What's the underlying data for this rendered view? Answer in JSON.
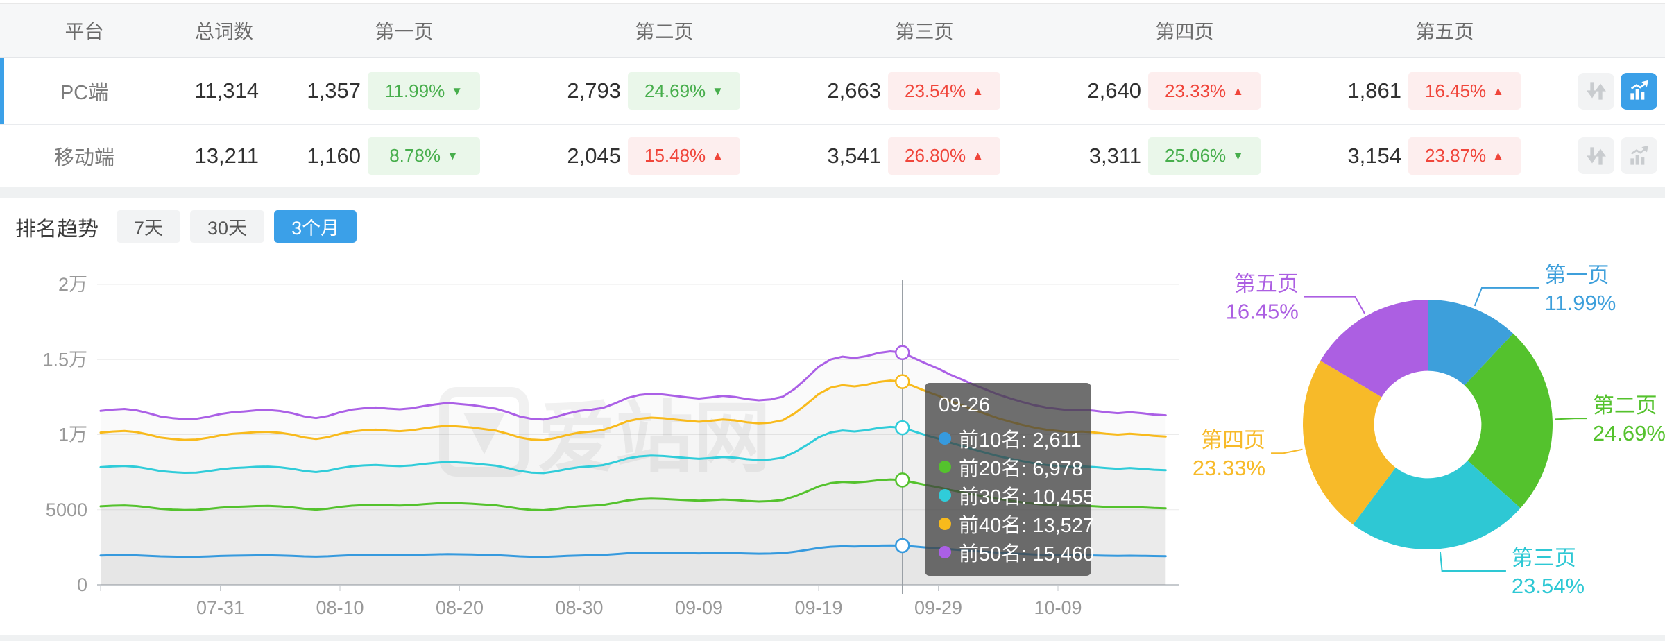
{
  "table": {
    "headers": {
      "platform": "平台",
      "total": "总词数",
      "pages": [
        "第一页",
        "第二页",
        "第三页",
        "第四页",
        "第五页"
      ]
    },
    "rows": [
      {
        "platform": "PC端",
        "total": "11,314",
        "active": true,
        "chart_button_active": true,
        "pages": [
          {
            "count": "1,357",
            "pct": "11.99%",
            "dir": "down",
            "tone": "green"
          },
          {
            "count": "2,793",
            "pct": "24.69%",
            "dir": "down",
            "tone": "green"
          },
          {
            "count": "2,663",
            "pct": "23.54%",
            "dir": "up",
            "tone": "red"
          },
          {
            "count": "2,640",
            "pct": "23.33%",
            "dir": "up",
            "tone": "red"
          },
          {
            "count": "1,861",
            "pct": "16.45%",
            "dir": "up",
            "tone": "red"
          }
        ]
      },
      {
        "platform": "移动端",
        "total": "13,211",
        "active": false,
        "chart_button_active": false,
        "pages": [
          {
            "count": "1,160",
            "pct": "8.78%",
            "dir": "down",
            "tone": "green"
          },
          {
            "count": "2,045",
            "pct": "15.48%",
            "dir": "up",
            "tone": "red"
          },
          {
            "count": "3,541",
            "pct": "26.80%",
            "dir": "up",
            "tone": "red"
          },
          {
            "count": "3,311",
            "pct": "25.06%",
            "dir": "down",
            "tone": "green"
          },
          {
            "count": "3,154",
            "pct": "23.87%",
            "dir": "up",
            "tone": "red"
          }
        ]
      }
    ]
  },
  "trend": {
    "title": "排名趋势",
    "tabs": [
      {
        "label": "7天",
        "active": false
      },
      {
        "label": "30天",
        "active": false
      },
      {
        "label": "3个月",
        "active": true
      }
    ]
  },
  "watermark": "爱站网",
  "colors": {
    "accent": "#3ba0e8",
    "badge_green": "#47ae4c",
    "badge_red": "#f0453a",
    "axis_text": "#999999",
    "grid": "#ebebeb",
    "axis_line": "#c6cace",
    "crosshair": "#9aa0a6"
  },
  "chart_data": [
    {
      "type": "line",
      "title": "排名趋势 (3个月)",
      "x_tick_labels": [
        "07-31",
        "08-10",
        "08-20",
        "08-30",
        "09-09",
        "09-19",
        "09-29",
        "10-09"
      ],
      "x_tick_days": [
        10,
        20,
        30,
        40,
        50,
        60,
        70,
        80
      ],
      "days_total": 90,
      "y_ticks": [
        {
          "label": "0",
          "value": 0
        },
        {
          "label": "5000",
          "value": 5000
        },
        {
          "label": "1万",
          "value": 10000
        },
        {
          "label": "1.5万",
          "value": 15000
        },
        {
          "label": "2万",
          "value": 20000
        }
      ],
      "ylim": [
        0,
        20000
      ],
      "grid": true,
      "legend_position": "none",
      "crosshair_day": 67,
      "tooltip": {
        "title": "09-26",
        "items": [
          {
            "name": "前10名",
            "value": "2,611",
            "color": "#369ade"
          },
          {
            "name": "前20名",
            "value": "6,978",
            "color": "#54c22d"
          },
          {
            "name": "前30名",
            "value": "10,455",
            "color": "#30ccd9"
          },
          {
            "name": "前40名",
            "value": "13,527",
            "color": "#f8ba1c"
          },
          {
            "name": "前50名",
            "value": "15,460",
            "color": "#ab60e6"
          }
        ]
      },
      "series": [
        {
          "name": "前10名",
          "color": "#369ade",
          "values": [
            1956,
            1970,
            1978,
            1962,
            1930,
            1893,
            1875,
            1863,
            1867,
            1891,
            1920,
            1940,
            1950,
            1962,
            1966,
            1954,
            1930,
            1895,
            1875,
            1899,
            1940,
            1970,
            1986,
            1994,
            1982,
            1974,
            1986,
            2010,
            2030,
            2046,
            2034,
            2022,
            2002,
            1982,
            1942,
            1895,
            1867,
            1859,
            1887,
            1926,
            1956,
            1970,
            1990,
            2042,
            2101,
            2135,
            2149,
            2141,
            2125,
            2109,
            2095,
            2109,
            2125,
            2113,
            2089,
            2075,
            2085,
            2115,
            2204,
            2324,
            2453,
            2534,
            2566,
            2550,
            2572,
            2608,
            2625,
            2611,
            2548,
            2486,
            2431,
            2363,
            2308,
            2248,
            2195,
            2141,
            2097,
            2058,
            2022,
            1994,
            1978,
            1962,
            1970,
            1958,
            1942,
            1930,
            1942,
            1930,
            1915,
            1907
          ]
        },
        {
          "name": "前20名",
          "color": "#54c22d",
          "values": [
            5226,
            5264,
            5285,
            5242,
            5157,
            5057,
            5009,
            4977,
            4988,
            5051,
            5131,
            5184,
            5210,
            5242,
            5253,
            5221,
            5157,
            5062,
            5009,
            5073,
            5184,
            5264,
            5306,
            5327,
            5295,
            5274,
            5306,
            5370,
            5423,
            5465,
            5433,
            5401,
            5348,
            5295,
            5189,
            5062,
            4988,
            4966,
            5041,
            5147,
            5226,
            5264,
            5317,
            5455,
            5614,
            5704,
            5741,
            5720,
            5677,
            5635,
            5598,
            5635,
            5677,
            5646,
            5582,
            5545,
            5571,
            5651,
            5890,
            6208,
            6553,
            6770,
            6855,
            6813,
            6871,
            6967,
            7015,
            6978,
            6808,
            6643,
            6495,
            6314,
            6166,
            6006,
            5863,
            5720,
            5603,
            5497,
            5401,
            5327,
            5285,
            5242,
            5264,
            5232,
            5189,
            5157,
            5189,
            5157,
            5115,
            5094
          ]
        },
        {
          "name": "前30名",
          "color": "#30ccd9",
          "values": [
            7832,
            7887,
            7919,
            7856,
            7728,
            7577,
            7506,
            7458,
            7474,
            7569,
            7689,
            7768,
            7808,
            7856,
            7871,
            7824,
            7728,
            7585,
            7506,
            7601,
            7768,
            7887,
            7951,
            7983,
            7935,
            7903,
            7951,
            8046,
            8126,
            8190,
            8142,
            8094,
            8015,
            7935,
            7776,
            7585,
            7474,
            7442,
            7553,
            7712,
            7832,
            7887,
            7967,
            8174,
            8412,
            8547,
            8603,
            8571,
            8508,
            8444,
            8388,
            8444,
            8508,
            8460,
            8364,
            8309,
            8349,
            8468,
            8826,
            9303,
            9819,
            10145,
            10273,
            10209,
            10297,
            10440,
            10511,
            10455,
            10201,
            9955,
            9732,
            9462,
            9239,
            9001,
            8786,
            8571,
            8396,
            8237,
            8094,
            7983,
            7919,
            7856,
            7887,
            7840,
            7776,
            7728,
            7776,
            7728,
            7665,
            7633
          ]
        },
        {
          "name": "前40名",
          "color": "#f8ba1c",
          "values": [
            10133,
            10205,
            10246,
            10164,
            10000,
            9804,
            9711,
            9649,
            9670,
            9793,
            9948,
            10050,
            10102,
            10164,
            10184,
            10122,
            10000,
            9814,
            9711,
            9834,
            10050,
            10205,
            10287,
            10328,
            10266,
            10225,
            10287,
            10410,
            10513,
            10596,
            10534,
            10472,
            10369,
            10266,
            10061,
            9814,
            9670,
            9629,
            9773,
            9978,
            10133,
            10205,
            10308,
            10575,
            10884,
            11059,
            11131,
            11089,
            11007,
            10925,
            10853,
            10925,
            11007,
            10945,
            10822,
            10750,
            10801,
            10956,
            11419,
            12036,
            12704,
            13126,
            13291,
            13208,
            13322,
            13507,
            13599,
            13527,
            13198,
            12879,
            12591,
            12242,
            11954,
            11645,
            11367,
            11089,
            10863,
            10657,
            10472,
            10328,
            10246,
            10164,
            10205,
            10143,
            10061,
            10000,
            10061,
            10000,
            9917,
            9876
          ]
        },
        {
          "name": "前50名",
          "color": "#ab60e6",
          "values": [
            11581,
            11663,
            11710,
            11616,
            11428,
            11205,
            11099,
            11028,
            11052,
            11193,
            11369,
            11487,
            11545,
            11616,
            11639,
            11569,
            11428,
            11216,
            11099,
            11240,
            11487,
            11663,
            11757,
            11804,
            11733,
            11686,
            11757,
            11898,
            12016,
            12110,
            12039,
            11969,
            11851,
            11733,
            11498,
            11216,
            11052,
            11004,
            11169,
            11404,
            11581,
            11663,
            11781,
            12086,
            12439,
            12639,
            12721,
            12674,
            12580,
            12486,
            12404,
            12486,
            12580,
            12509,
            12368,
            12286,
            12345,
            12521,
            13050,
            13756,
            14520,
            15002,
            15190,
            15096,
            15225,
            15437,
            15543,
            15460,
            15084,
            14720,
            14391,
            13991,
            13662,
            13309,
            12992,
            12674,
            12415,
            12180,
            11969,
            11804,
            11710,
            11616,
            11663,
            11592,
            11498,
            11428,
            11498,
            11428,
            11334,
            11287
          ]
        }
      ]
    },
    {
      "type": "pie",
      "title": "页面分布",
      "inner_radius_ratio": 0.43,
      "start_angle_deg": 0,
      "slices": [
        {
          "label": "第一页",
          "pct": 11.99,
          "pct_label": "11.99%",
          "color": "#3d9fdb"
        },
        {
          "label": "第二页",
          "pct": 24.69,
          "pct_label": "24.69%",
          "color": "#54c22d"
        },
        {
          "label": "第三页",
          "pct": 23.54,
          "pct_label": "23.54%",
          "color": "#2ec8d4"
        },
        {
          "label": "第四页",
          "pct": 23.33,
          "pct_label": "23.33%",
          "color": "#f7ba29"
        },
        {
          "label": "第五页",
          "pct": 16.45,
          "pct_label": "16.45%",
          "color": "#ac5fe2"
        }
      ]
    }
  ]
}
